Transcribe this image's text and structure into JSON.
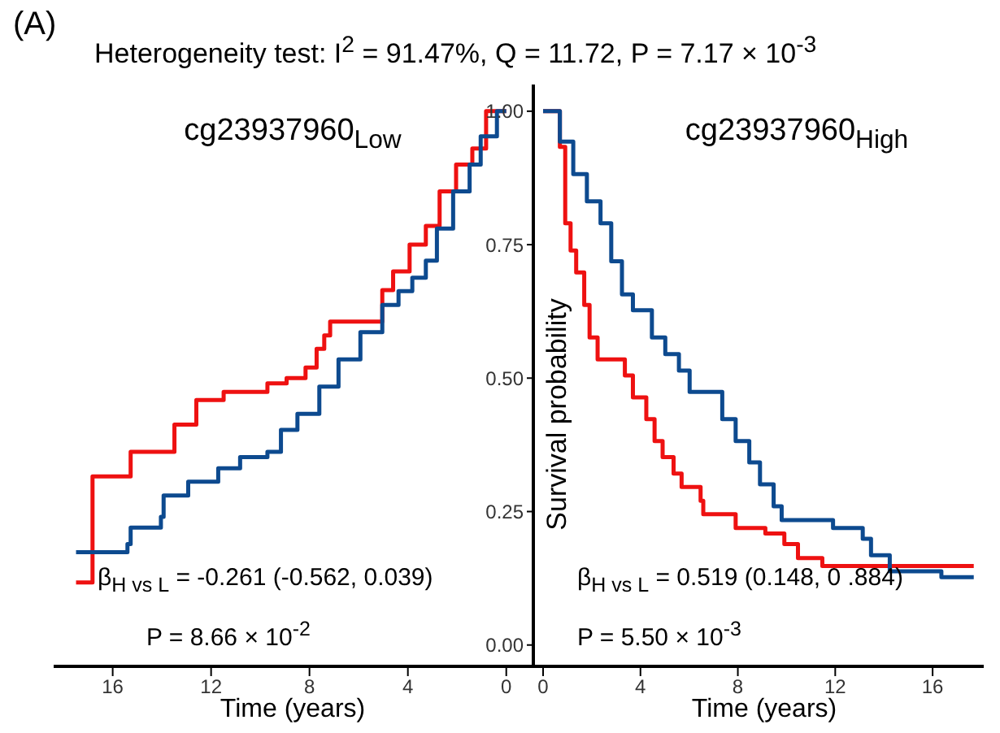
{
  "chart_data": [
    {
      "type": "step",
      "title": "cg23937960$_{Low}$",
      "xlabel": "Time (years)",
      "annotations": [
        "(A)",
        "Heterogeneity test: I$^{2}$ = 91.47%, Q = 11.72, P = 7.17 × 10$^{-3}$",
        "β$_{H vs L}$ = -0.261 (-0.562, 0.039)",
        "P = 8.66 × 10$^{-2}$"
      ],
      "xlim": [
        18.4,
        -1.1
      ],
      "xticks": [
        16,
        12,
        8,
        4,
        0
      ],
      "ylim": [
        -0.04,
        1.05
      ],
      "yticks": [
        {
          "value": 0,
          "label": "0.00"
        },
        {
          "value": 0.25,
          "label": "0.25"
        },
        {
          "value": 0.5,
          "label": "0.50"
        },
        {
          "value": 0.75,
          "label": "0.75"
        },
        {
          "value": 1,
          "label": "1.00"
        }
      ],
      "series": [
        {
          "color": "#ee1111",
          "x": [
            0,
            0.82,
            1.38,
            2.04,
            2.71,
            3.27,
            3.93,
            4.6,
            5.04,
            7.16,
            7.4,
            7.71,
            8.16,
            8.93,
            9.71,
            11.49,
            12.6,
            13.49,
            15.27,
            16.82,
            17.49
          ],
          "values": [
            1.0,
            0.93,
            0.9,
            0.85,
            0.785,
            0.75,
            0.7,
            0.665,
            0.606,
            0.58,
            0.555,
            0.52,
            0.5,
            0.49,
            0.474,
            0.459,
            0.413,
            0.362,
            0.316,
            0.117,
            0.117
          ]
        },
        {
          "color": "#0d4a8f",
          "x": [
            0,
            0.38,
            1.04,
            1.49,
            2.16,
            2.82,
            3.27,
            3.82,
            4.38,
            5.04,
            5.93,
            6.82,
            7.6,
            8.49,
            9.16,
            9.71,
            10.82,
            11.71,
            12.93,
            13.93,
            14.04,
            15.27,
            15.4,
            17.49
          ],
          "values": [
            1.0,
            0.953,
            0.9,
            0.85,
            0.78,
            0.72,
            0.688,
            0.663,
            0.637,
            0.586,
            0.535,
            0.484,
            0.433,
            0.403,
            0.362,
            0.352,
            0.331,
            0.306,
            0.28,
            0.24,
            0.22,
            0.189,
            0.174,
            0.174
          ]
        }
      ]
    },
    {
      "type": "step",
      "title": "cg23937960$_{High}$",
      "xlabel": "Time (years)",
      "ylabel": "Survival probability",
      "tick_labels": "x",
      "annotations": [
        "β$_{H vs L}$ = 0.519 (0.148, 0 .884)",
        "P = 5.50 × 10$^{-3}$"
      ],
      "xlim": [
        -0.4,
        18.1
      ],
      "xticks": [
        0,
        4,
        8,
        12,
        16
      ],
      "ylim": [
        -0.04,
        1.05
      ],
      "series": [
        {
          "color": "#ee1111",
          "x": [
            0,
            0.4,
            0.69,
            0.91,
            1.13,
            1.36,
            1.69,
            1.91,
            2.24,
            3.36,
            3.69,
            4.24,
            4.58,
            4.91,
            5.36,
            5.69,
            6.47,
            6.58,
            7.91,
            9.13,
            9.91,
            10.47,
            11.47,
            17.69
          ],
          "values": [
            1.0,
            1.0,
            0.933,
            0.79,
            0.739,
            0.698,
            0.637,
            0.576,
            0.535,
            0.505,
            0.464,
            0.423,
            0.382,
            0.352,
            0.321,
            0.296,
            0.27,
            0.245,
            0.219,
            0.209,
            0.189,
            0.163,
            0.148,
            0.148
          ]
        },
        {
          "color": "#0d4a8f",
          "x": [
            0,
            0.69,
            1.24,
            1.8,
            2.36,
            2.8,
            3.24,
            3.69,
            4.47,
            5.02,
            5.58,
            6.02,
            7.36,
            7.91,
            8.47,
            8.91,
            9.47,
            9.8,
            11.91,
            13.13,
            13.47,
            14.24,
            16.36,
            17.69
          ],
          "values": [
            1.0,
            0.943,
            0.882,
            0.831,
            0.79,
            0.719,
            0.657,
            0.627,
            0.576,
            0.545,
            0.514,
            0.474,
            0.423,
            0.382,
            0.342,
            0.301,
            0.26,
            0.234,
            0.219,
            0.199,
            0.168,
            0.138,
            0.127,
            0.127
          ]
        }
      ]
    }
  ]
}
